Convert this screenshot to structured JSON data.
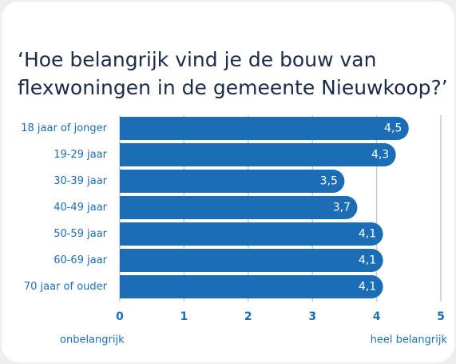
{
  "chart_data": {
    "type": "bar",
    "orientation": "horizontal",
    "title": [
      "‘Hoe belangrijk vind je de bouw van",
      "flexwoningen in de gemeente Nieuwkoop?’"
    ],
    "categories": [
      "18 jaar of jonger",
      "19-29 jaar",
      "30-39 jaar",
      "40-49 jaar",
      "50-59 jaar",
      "60-69 jaar",
      "70 jaar of ouder"
    ],
    "values": [
      4.5,
      4.3,
      3.5,
      3.7,
      4.1,
      4.1,
      4.1
    ],
    "value_labels": [
      "4,5",
      "4,3",
      "3,5",
      "3,7",
      "4,1",
      "4,1",
      "4,1"
    ],
    "color": "#1b6db5",
    "xlim": [
      0,
      5
    ],
    "xticks": [
      0,
      1,
      2,
      3,
      4,
      5
    ],
    "grid": true,
    "annotations": [
      "onbelangrijk",
      "heel belangrijk"
    ]
  }
}
